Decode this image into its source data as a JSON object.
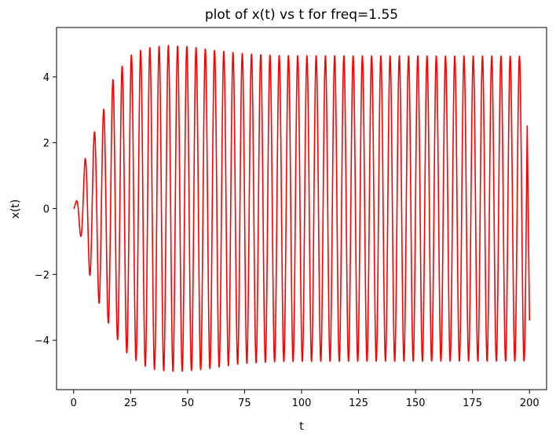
{
  "chart_data": {
    "type": "line",
    "title": "plot of x(t) vs t for freq=1.55",
    "xlabel": "t",
    "ylabel": "x(t)",
    "xlim": [
      -7.5,
      207.5
    ],
    "ylim": [
      -5.5,
      5.5
    ],
    "xticks": [
      0,
      25,
      50,
      75,
      100,
      125,
      150,
      175,
      200
    ],
    "yticks": [
      -4,
      -2,
      0,
      2,
      4
    ],
    "ytick_labels": [
      "−4",
      "−2",
      "0",
      "2",
      "4"
    ],
    "grid": false,
    "series": [
      {
        "color": "#ff0000",
        "frequency": 1.55,
        "t_range": [
          0,
          200
        ],
        "peak_envelope": [
          [
            0,
            0
          ],
          [
            2,
            0.4
          ],
          [
            5,
            1.5
          ],
          [
            9.5,
            2.4
          ],
          [
            14,
            3.15
          ],
          [
            16,
            3.7
          ],
          [
            18,
            4.05
          ],
          [
            21,
            4.3
          ],
          [
            25,
            4.65
          ],
          [
            29,
            4.8
          ],
          [
            34,
            4.9
          ],
          [
            38,
            4.93
          ],
          [
            42,
            4.95
          ],
          [
            46,
            4.93
          ],
          [
            50,
            4.92
          ],
          [
            55,
            4.88
          ],
          [
            60,
            4.82
          ],
          [
            65,
            4.78
          ],
          [
            72,
            4.72
          ],
          [
            80,
            4.68
          ],
          [
            90,
            4.65
          ],
          [
            100,
            4.64
          ],
          [
            200,
            4.63
          ]
        ],
        "trough_envelope": [
          [
            0,
            0
          ],
          [
            3.5,
            -0.95
          ],
          [
            7,
            -2.0
          ],
          [
            11,
            -2.85
          ],
          [
            15,
            -3.45
          ],
          [
            19,
            -3.95
          ],
          [
            22,
            -4.3
          ],
          [
            26,
            -4.55
          ],
          [
            30,
            -4.75
          ],
          [
            35,
            -4.88
          ],
          [
            40,
            -4.93
          ],
          [
            46,
            -4.95
          ],
          [
            52,
            -4.92
          ],
          [
            58,
            -4.88
          ],
          [
            65,
            -4.8
          ],
          [
            75,
            -4.7
          ],
          [
            90,
            -4.65
          ],
          [
            100,
            -4.64
          ],
          [
            200,
            -4.63
          ]
        ],
        "end_value": -3.4
      }
    ]
  }
}
